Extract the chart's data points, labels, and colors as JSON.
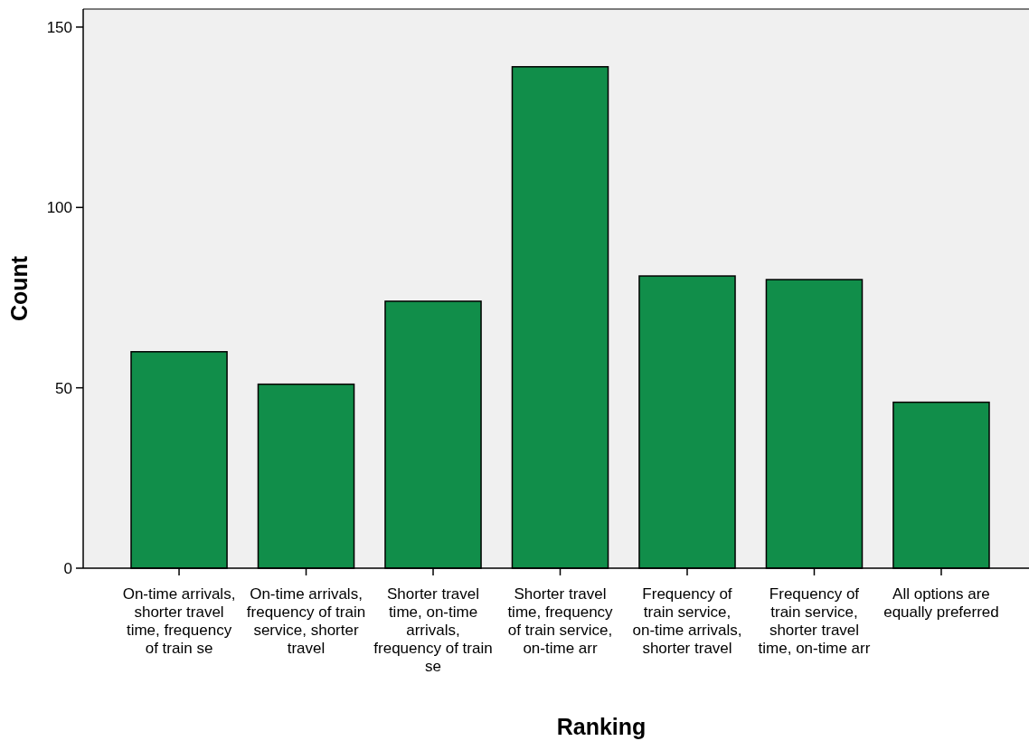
{
  "chart_data": {
    "type": "bar",
    "xlabel": "Ranking",
    "ylabel": "Count",
    "categories": [
      "On-time arrivals, shorter travel time, frequency of train se",
      "On-time arrivals, frequency of train service, shorter travel",
      "Shorter travel time, on-time arrivals, frequency of train se",
      "Shorter travel time, frequency of train service, on-time arr",
      "Frequency of train service, on-time arrivals, shorter travel",
      "Frequency of train service, shorter travel time, on-time arr",
      "All options are equally preferred"
    ],
    "values": [
      60,
      51,
      74,
      139,
      81,
      80,
      46
    ],
    "color": "#118e4a",
    "ylim": [
      0,
      155
    ],
    "yticks": [
      0,
      50,
      100,
      150
    ],
    "grid": false
  }
}
